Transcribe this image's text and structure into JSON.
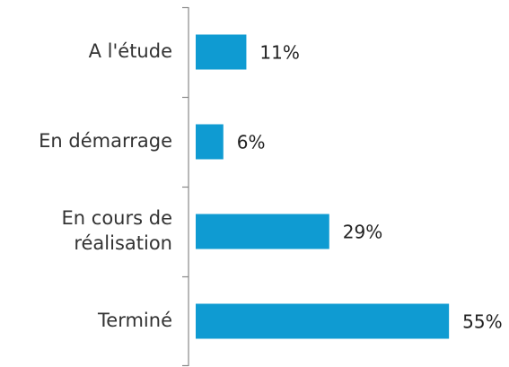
{
  "chart_data": {
    "type": "barh",
    "categories": [
      "A l'étude",
      "En démarrage",
      "En cours de\nréalisation",
      "Terminé"
    ],
    "values": [
      11,
      6,
      29,
      55
    ],
    "value_labels": [
      "11%",
      "6%",
      "29%",
      "55%"
    ],
    "color": "#0f9bd2"
  }
}
